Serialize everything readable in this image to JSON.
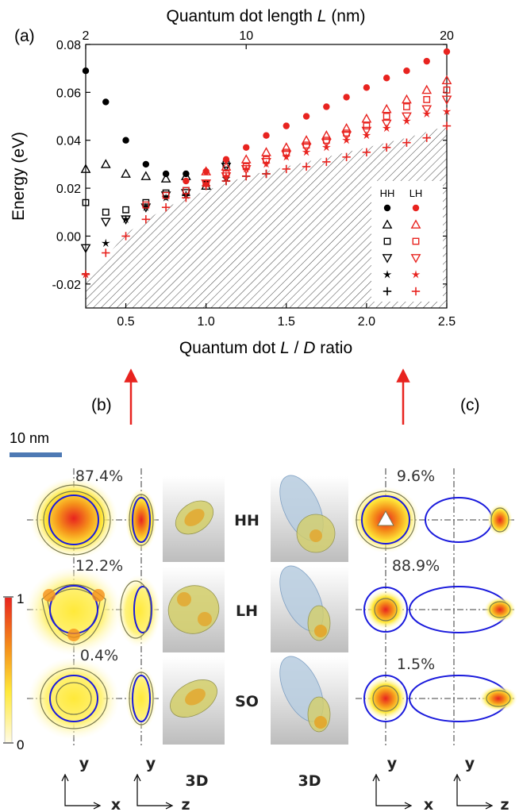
{
  "panel_labels": {
    "a": "(a)",
    "b": "(b)",
    "c": "(c)"
  },
  "chart_data": {
    "type": "scatter",
    "title": "",
    "xlabel_parts": [
      "Quantum dot ",
      "L",
      " / ",
      "D",
      " ratio"
    ],
    "ylabel": "Energy (eV)",
    "top_xlabel_parts": [
      "Quantum dot length ",
      "L",
      " (nm)"
    ],
    "xlim": [
      0.25,
      2.5
    ],
    "ylim": [
      -0.03,
      0.08
    ],
    "xticks": [
      0.5,
      1.0,
      1.5,
      2.0,
      2.5
    ],
    "xtick_labels": [
      "0.5",
      "1.0",
      "1.5",
      "2.0",
      "2.5"
    ],
    "yticks": [
      -0.02,
      0.0,
      0.02,
      0.04,
      0.06,
      0.08
    ],
    "ytick_labels": [
      "-0.02",
      "0.00",
      "0.02",
      "0.04",
      "0.06",
      "0.08"
    ],
    "top_xticks": [
      {
        "ratio": 0.25,
        "label": "2"
      },
      {
        "ratio": 1.25,
        "label": "10"
      },
      {
        "ratio": 2.5,
        "label": "20"
      }
    ],
    "legend": {
      "position": "right",
      "col_headers": [
        "HH",
        "LH"
      ]
    },
    "hatched_region": {
      "boundary_x": [
        0.25,
        0.5,
        0.75,
        1.0,
        1.25,
        1.5,
        1.75,
        2.0,
        2.25,
        2.5
      ],
      "boundary_y": [
        -0.019,
        0.001,
        0.012,
        0.019,
        0.025,
        0.029,
        0.033,
        0.037,
        0.041,
        0.046
      ]
    },
    "series": [
      {
        "name": "HH",
        "state": 1,
        "marker": "circle",
        "color": "#000000",
        "points": [
          [
            0.25,
            0.069
          ],
          [
            0.375,
            0.056
          ],
          [
            0.5,
            0.04
          ],
          [
            0.625,
            0.03
          ],
          [
            0.75,
            0.026
          ],
          [
            0.875,
            0.026
          ],
          [
            1.0,
            0.022
          ]
        ]
      },
      {
        "name": "HH",
        "state": 2,
        "marker": "triangle-up",
        "color": "#000000",
        "points": [
          [
            0.25,
            0.028
          ],
          [
            0.375,
            0.03
          ],
          [
            0.5,
            0.026
          ],
          [
            0.625,
            0.025
          ],
          [
            0.75,
            0.024
          ],
          [
            0.875,
            0.025
          ],
          [
            1.0,
            0.021
          ]
        ]
      },
      {
        "name": "HH",
        "state": 3,
        "marker": "square",
        "color": "#000000",
        "points": [
          [
            0.25,
            0.014
          ],
          [
            0.375,
            0.01
          ],
          [
            0.5,
            0.011
          ],
          [
            0.625,
            0.014
          ],
          [
            0.75,
            0.018
          ],
          [
            0.875,
            0.019
          ],
          [
            1.125,
            0.03
          ]
        ]
      },
      {
        "name": "HH",
        "state": 4,
        "marker": "triangle-down",
        "color": "#000000",
        "points": [
          [
            0.25,
            -0.005
          ],
          [
            0.375,
            0.006
          ],
          [
            0.5,
            0.007
          ],
          [
            0.625,
            0.012
          ],
          [
            0.75,
            0.017
          ],
          [
            0.875,
            0.018
          ],
          [
            1.125,
            0.029
          ]
        ]
      },
      {
        "name": "HH",
        "state": 5,
        "marker": "star",
        "color": "#000000",
        "points": [
          [
            0.25,
            -0.016
          ],
          [
            0.375,
            -0.003
          ],
          [
            0.5,
            0.007
          ],
          [
            0.625,
            0.012
          ],
          [
            0.75,
            0.016
          ],
          [
            0.875,
            0.017
          ],
          [
            1.125,
            0.024
          ]
        ]
      },
      {
        "name": "HH",
        "state": 6,
        "marker": "plus",
        "color": "#000000",
        "points": [
          [
            0.875,
            0.017
          ],
          [
            1.0,
            0.021
          ],
          [
            1.125,
            0.023
          ],
          [
            1.25,
            0.025
          ],
          [
            1.375,
            0.026
          ]
        ]
      },
      {
        "name": "LH",
        "state": 1,
        "marker": "circle",
        "color": "#e8231f",
        "points": [
          [
            0.875,
            0.023
          ],
          [
            1.0,
            0.027
          ],
          [
            1.125,
            0.032
          ],
          [
            1.25,
            0.037
          ],
          [
            1.375,
            0.042
          ],
          [
            1.5,
            0.046
          ],
          [
            1.625,
            0.05
          ],
          [
            1.75,
            0.054
          ],
          [
            1.875,
            0.058
          ],
          [
            2.0,
            0.062
          ],
          [
            2.125,
            0.066
          ],
          [
            2.25,
            0.069
          ],
          [
            2.375,
            0.073
          ],
          [
            2.5,
            0.077
          ]
        ]
      },
      {
        "name": "LH",
        "state": 2,
        "marker": "triangle-up",
        "color": "#e8231f",
        "points": [
          [
            1.0,
            0.027
          ],
          [
            1.125,
            0.029
          ],
          [
            1.25,
            0.032
          ],
          [
            1.375,
            0.035
          ],
          [
            1.5,
            0.037
          ],
          [
            1.625,
            0.04
          ],
          [
            1.75,
            0.042
          ],
          [
            1.875,
            0.045
          ],
          [
            2.0,
            0.049
          ],
          [
            2.125,
            0.053
          ],
          [
            2.25,
            0.057
          ],
          [
            2.375,
            0.061
          ],
          [
            2.5,
            0.065
          ]
        ]
      },
      {
        "name": "LH",
        "state": 3,
        "marker": "square",
        "color": "#e8231f",
        "points": [
          [
            0.625,
            0.013
          ],
          [
            0.75,
            0.017
          ],
          [
            0.875,
            0.019
          ],
          [
            1.0,
            0.022
          ],
          [
            1.125,
            0.026
          ],
          [
            1.25,
            0.029
          ],
          [
            1.375,
            0.032
          ],
          [
            1.5,
            0.035
          ],
          [
            1.625,
            0.038
          ],
          [
            1.75,
            0.04
          ],
          [
            1.875,
            0.043
          ],
          [
            2.0,
            0.046
          ],
          [
            2.125,
            0.05
          ],
          [
            2.25,
            0.054
          ],
          [
            2.375,
            0.057
          ],
          [
            2.5,
            0.061
          ]
        ]
      },
      {
        "name": "LH",
        "state": 4,
        "marker": "triangle-down",
        "color": "#e8231f",
        "points": [
          [
            1.0,
            0.022
          ],
          [
            1.125,
            0.025
          ],
          [
            1.25,
            0.028
          ],
          [
            1.375,
            0.031
          ],
          [
            1.5,
            0.034
          ],
          [
            1.625,
            0.037
          ],
          [
            1.75,
            0.039
          ],
          [
            1.875,
            0.042
          ],
          [
            2.0,
            0.044
          ],
          [
            2.125,
            0.047
          ],
          [
            2.25,
            0.05
          ],
          [
            2.375,
            0.053
          ],
          [
            2.5,
            0.057
          ]
        ]
      },
      {
        "name": "LH",
        "state": 5,
        "marker": "star",
        "color": "#e8231f",
        "points": [
          [
            0.25,
            -0.016
          ],
          [
            1.0,
            0.022
          ],
          [
            1.125,
            0.025
          ],
          [
            1.25,
            0.028
          ],
          [
            1.375,
            0.03
          ],
          [
            1.5,
            0.033
          ],
          [
            1.625,
            0.035
          ],
          [
            1.75,
            0.037
          ],
          [
            1.875,
            0.04
          ],
          [
            2.0,
            0.042
          ],
          [
            2.125,
            0.045
          ],
          [
            2.25,
            0.048
          ],
          [
            2.375,
            0.051
          ],
          [
            2.5,
            0.052
          ]
        ]
      },
      {
        "name": "LH",
        "state": 6,
        "marker": "plus",
        "color": "#e8231f",
        "points": [
          [
            0.25,
            -0.016
          ],
          [
            0.375,
            -0.007
          ],
          [
            0.5,
            0.0
          ],
          [
            0.625,
            0.007
          ],
          [
            0.75,
            0.012
          ],
          [
            0.875,
            0.016
          ],
          [
            1.0,
            0.021
          ],
          [
            1.125,
            0.023
          ],
          [
            1.25,
            0.025
          ],
          [
            1.375,
            0.026
          ],
          [
            1.5,
            0.028
          ],
          [
            1.625,
            0.029
          ],
          [
            1.75,
            0.031
          ],
          [
            1.875,
            0.033
          ],
          [
            2.0,
            0.035
          ],
          [
            2.125,
            0.037
          ],
          [
            2.25,
            0.039
          ],
          [
            2.375,
            0.041
          ],
          [
            2.5,
            0.046
          ]
        ]
      }
    ]
  },
  "scale_bar": {
    "label": "10 nm",
    "color": "#4d79b4"
  },
  "colorbar": {
    "max_label": "1",
    "min_label": "0"
  },
  "bands": [
    "HH",
    "LH",
    "SO"
  ],
  "left_percentages": [
    "87.4%",
    "12.2%",
    "0.4%"
  ],
  "right_percentages": [
    "9.6%",
    "88.9%",
    "1.5%"
  ],
  "view_labels": {
    "threeD": "3D"
  },
  "axis_letters": {
    "x": "x",
    "y": "y",
    "z": "z"
  },
  "colors": {
    "arrow": "#e8231f",
    "outline": "#1a1adc",
    "contour": "#7a7a50",
    "heat_core": "#e8231f"
  }
}
